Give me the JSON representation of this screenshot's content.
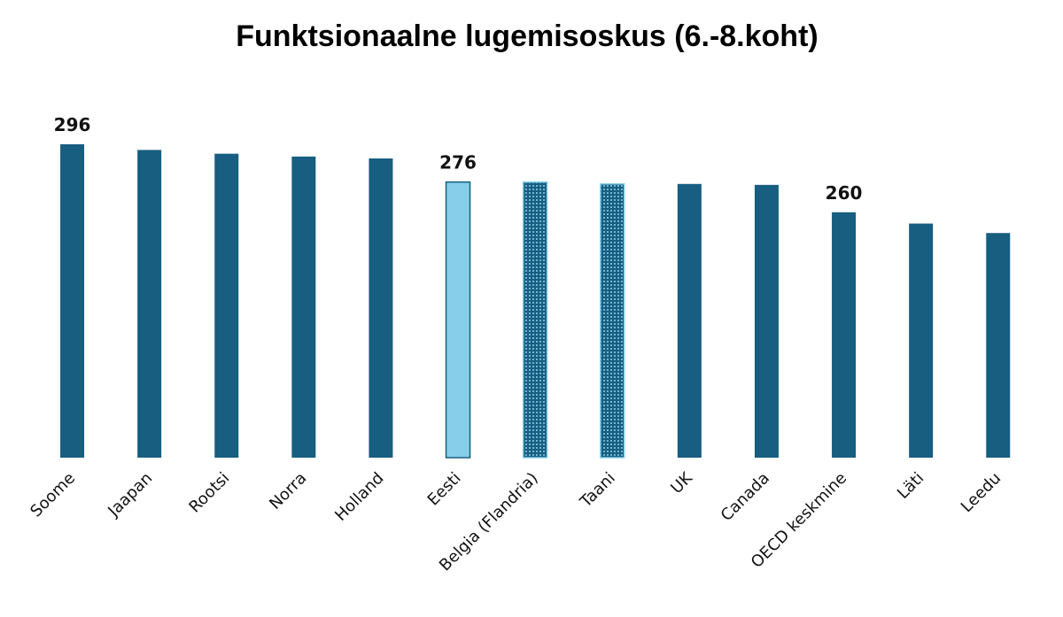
{
  "chart_data": {
    "type": "bar",
    "title": "Funktsionaalne lugemisoskus (6.-8.koht)",
    "xlabel": "",
    "ylabel": "",
    "categories": [
      "Soome",
      "Jaapan",
      "Rootsi",
      "Norra",
      "Holland",
      "Eesti",
      "Belgia (Flandria)",
      "Taani",
      "UK",
      "Canada",
      "OECD keskmine",
      "Läti",
      "Leedu"
    ],
    "values": [
      296,
      293,
      291,
      289.5,
      288.5,
      276,
      276,
      275,
      275,
      274.5,
      260,
      254,
      249
    ],
    "data_labels": [
      {
        "category": "Soome",
        "text": "296"
      },
      {
        "category": "Eesti",
        "text": "276"
      },
      {
        "category": "OECD keskmine",
        "text": "260"
      }
    ],
    "bar_styles": {
      "Eesti": "highlight",
      "Belgia (Flandria)": "dotted",
      "Taani": "dotted"
    },
    "colors": {
      "default": "#175e80",
      "highlight": "#87ceeb",
      "highlight_border": "#175e80",
      "dotted_fill": "#175e80",
      "dotted_dots": "#87ceeb"
    },
    "ylim": [
      130,
      296
    ],
    "grid": false,
    "legend": "none"
  }
}
